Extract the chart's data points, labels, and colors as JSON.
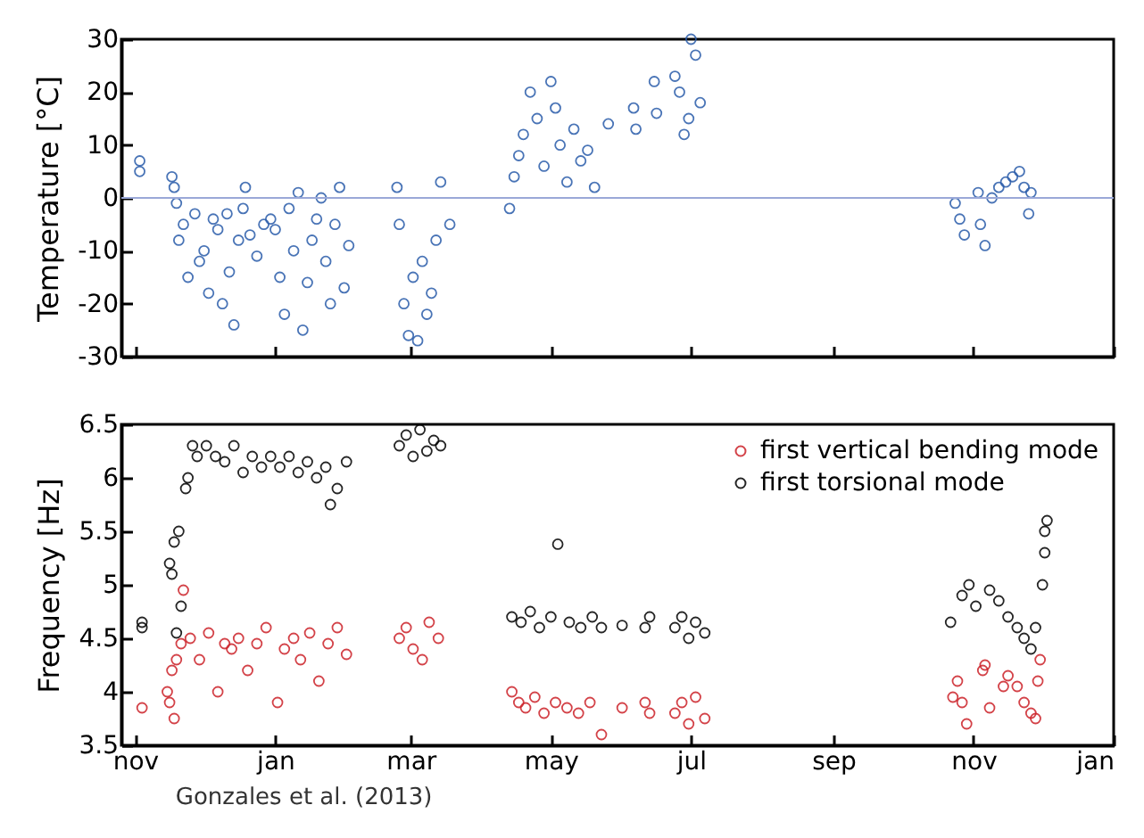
{
  "chart_data": [
    {
      "type": "scatter",
      "ylabel": "Temperature [°C]",
      "marker": "circle",
      "grid": false,
      "legend": false,
      "tick_labels": "y",
      "xlim": [
        "2012-10-26",
        "2014-01-01"
      ],
      "xticks": [
        {
          "value": "2012-11-01",
          "label": null
        },
        {
          "value": "2013-01-01",
          "label": null
        },
        {
          "value": "2013-03-01",
          "label": null
        },
        {
          "value": "2013-05-01",
          "label": null
        },
        {
          "value": "2013-07-01",
          "label": null
        },
        {
          "value": "2013-09-01",
          "label": null
        },
        {
          "value": "2013-11-01",
          "label": null
        },
        {
          "value": "2014-01-01",
          "label": null
        }
      ],
      "ylim": [
        -30,
        30
      ],
      "yticks": [
        -30,
        -20,
        -10,
        0,
        10,
        20,
        30
      ],
      "ref_lines": [
        {
          "axis": "y",
          "value": 0,
          "color": "#9aa8d8"
        }
      ],
      "series": [
        {
          "color": "#2a5caa",
          "x": [
            "2012-11-03",
            "2012-11-03",
            "2012-11-17",
            "2012-11-18",
            "2012-11-19",
            "2012-11-20",
            "2012-11-22",
            "2012-11-24",
            "2012-11-27",
            "2012-11-29",
            "2012-12-01",
            "2012-12-03",
            "2012-12-05",
            "2012-12-07",
            "2012-12-09",
            "2012-12-11",
            "2012-12-12",
            "2012-12-14",
            "2012-12-16",
            "2012-12-18",
            "2012-12-19",
            "2012-12-21",
            "2012-12-24",
            "2012-12-27",
            "2012-12-30",
            "2013-01-01",
            "2013-01-03",
            "2013-01-05",
            "2013-01-07",
            "2013-01-09",
            "2013-01-11",
            "2013-01-13",
            "2013-01-15",
            "2013-01-17",
            "2013-01-19",
            "2013-01-21",
            "2013-01-23",
            "2013-01-25",
            "2013-01-27",
            "2013-01-29",
            "2013-01-31",
            "2013-02-02",
            "2013-02-23",
            "2013-02-24",
            "2013-02-26",
            "2013-02-28",
            "2013-03-02",
            "2013-03-04",
            "2013-03-06",
            "2013-03-08",
            "2013-03-10",
            "2013-03-12",
            "2013-03-14",
            "2013-03-18",
            "2013-04-13",
            "2013-04-15",
            "2013-04-17",
            "2013-04-19",
            "2013-04-22",
            "2013-04-25",
            "2013-04-28",
            "2013-05-01",
            "2013-05-03",
            "2013-05-05",
            "2013-05-08",
            "2013-05-11",
            "2013-05-14",
            "2013-05-17",
            "2013-05-20",
            "2013-05-26",
            "2013-06-06",
            "2013-06-07",
            "2013-06-15",
            "2013-06-16",
            "2013-06-24",
            "2013-06-26",
            "2013-06-28",
            "2013-06-30",
            "2013-07-01",
            "2013-07-03",
            "2013-07-05",
            "2013-10-24",
            "2013-10-26",
            "2013-10-28",
            "2013-11-03",
            "2013-11-04",
            "2013-11-06",
            "2013-11-09",
            "2013-11-12",
            "2013-11-15",
            "2013-11-18",
            "2013-11-21",
            "2013-11-23",
            "2013-11-25",
            "2013-11-26"
          ],
          "values": [
            7,
            5,
            4,
            2,
            -1,
            -8,
            -5,
            -15,
            -3,
            -12,
            -10,
            -18,
            -4,
            -6,
            -20,
            -3,
            -14,
            -24,
            -8,
            -2,
            2,
            -7,
            -11,
            -5,
            -4,
            -6,
            -15,
            -22,
            -2,
            -10,
            1,
            -25,
            -16,
            -8,
            -4,
            0,
            -12,
            -20,
            -5,
            2,
            -17,
            -9,
            2,
            -5,
            -20,
            -26,
            -15,
            -27,
            -12,
            -22,
            -18,
            -8,
            3,
            -5,
            -2,
            4,
            8,
            12,
            20,
            15,
            6,
            22,
            17,
            10,
            3,
            13,
            7,
            9,
            2,
            14,
            17,
            13,
            22,
            16,
            23,
            20,
            12,
            15,
            30,
            27,
            18,
            -1,
            -4,
            -7,
            1,
            -5,
            -9,
            0,
            2,
            3,
            4,
            5,
            2,
            -3,
            1
          ]
        }
      ]
    },
    {
      "type": "scatter",
      "ylabel": "Frequency [Hz]",
      "marker": "circle",
      "grid": false,
      "legend": "top right",
      "xlim": [
        "2012-10-26",
        "2014-01-01"
      ],
      "xticks": [
        {
          "value": "2012-11-01",
          "label": "nov"
        },
        {
          "value": "2013-01-01",
          "label": "jan"
        },
        {
          "value": "2013-03-01",
          "label": "mar"
        },
        {
          "value": "2013-05-01",
          "label": "may"
        },
        {
          "value": "2013-07-01",
          "label": "jul"
        },
        {
          "value": "2013-09-01",
          "label": "sep"
        },
        {
          "value": "2013-11-01",
          "label": "nov"
        },
        {
          "value": "2014-01-01",
          "label": "jan"
        }
      ],
      "ylim": [
        3.5,
        6.5
      ],
      "yticks": [
        3.5,
        4,
        4.5,
        5,
        5.5,
        6,
        6.5
      ],
      "annotations": [
        "Gonzales et al. (2013)"
      ],
      "series": [
        {
          "name": "first vertical bending mode",
          "color": "#cc2229",
          "x": [
            "2012-11-04",
            "2012-11-15",
            "2012-11-16",
            "2012-11-17",
            "2012-11-18",
            "2012-11-19",
            "2012-11-21",
            "2012-11-22",
            "2012-11-25",
            "2012-11-29",
            "2012-12-03",
            "2012-12-07",
            "2012-12-10",
            "2012-12-13",
            "2012-12-16",
            "2012-12-20",
            "2012-12-24",
            "2012-12-28",
            "2013-01-02",
            "2013-01-05",
            "2013-01-09",
            "2013-01-12",
            "2013-01-16",
            "2013-01-20",
            "2013-01-24",
            "2013-01-28",
            "2013-02-01",
            "2013-02-24",
            "2013-02-27",
            "2013-03-02",
            "2013-03-06",
            "2013-03-09",
            "2013-03-13",
            "2013-04-14",
            "2013-04-17",
            "2013-04-20",
            "2013-04-24",
            "2013-04-28",
            "2013-05-03",
            "2013-05-08",
            "2013-05-13",
            "2013-05-18",
            "2013-05-23",
            "2013-06-01",
            "2013-06-11",
            "2013-06-13",
            "2013-06-24",
            "2013-06-27",
            "2013-06-30",
            "2013-07-03",
            "2013-07-07",
            "2013-10-23",
            "2013-10-25",
            "2013-10-27",
            "2013-10-29",
            "2013-11-05",
            "2013-11-06",
            "2013-11-08",
            "2013-11-14",
            "2013-11-16",
            "2013-11-20",
            "2013-11-23",
            "2013-11-26",
            "2013-11-28",
            "2013-11-29",
            "2013-11-30"
          ],
          "values": [
            3.85,
            4.0,
            3.9,
            4.2,
            3.75,
            4.3,
            4.45,
            4.95,
            4.5,
            4.3,
            4.55,
            4.0,
            4.45,
            4.4,
            4.5,
            4.2,
            4.45,
            4.6,
            3.9,
            4.4,
            4.5,
            4.3,
            4.55,
            4.1,
            4.45,
            4.6,
            4.35,
            4.5,
            4.6,
            4.4,
            4.3,
            4.65,
            4.5,
            4.0,
            3.9,
            3.85,
            3.95,
            3.8,
            3.9,
            3.85,
            3.8,
            3.9,
            3.6,
            3.85,
            3.9,
            3.8,
            3.8,
            3.9,
            3.7,
            3.95,
            3.75,
            3.95,
            4.1,
            3.9,
            3.7,
            4.2,
            4.25,
            3.85,
            4.05,
            4.15,
            4.05,
            3.9,
            3.8,
            3.75,
            4.1,
            4.3
          ]
        },
        {
          "name": "first torsional mode",
          "color": "#000000",
          "x": [
            "2012-11-04",
            "2012-11-04",
            "2012-11-16",
            "2012-11-17",
            "2012-11-18",
            "2012-11-19",
            "2012-11-20",
            "2012-11-21",
            "2012-11-23",
            "2012-11-24",
            "2012-11-26",
            "2012-11-28",
            "2012-12-02",
            "2012-12-06",
            "2012-12-10",
            "2012-12-14",
            "2012-12-18",
            "2012-12-22",
            "2012-12-26",
            "2012-12-30",
            "2013-01-03",
            "2013-01-07",
            "2013-01-11",
            "2013-01-15",
            "2013-01-19",
            "2013-01-23",
            "2013-01-25",
            "2013-01-28",
            "2013-02-01",
            "2013-02-24",
            "2013-02-27",
            "2013-03-02",
            "2013-03-05",
            "2013-03-08",
            "2013-03-11",
            "2013-03-14",
            "2013-04-14",
            "2013-04-18",
            "2013-04-22",
            "2013-04-26",
            "2013-05-01",
            "2013-05-04",
            "2013-05-09",
            "2013-05-14",
            "2013-05-19",
            "2013-05-23",
            "2013-06-01",
            "2013-06-11",
            "2013-06-13",
            "2013-06-24",
            "2013-06-27",
            "2013-06-30",
            "2013-07-03",
            "2013-07-07",
            "2013-10-22",
            "2013-10-27",
            "2013-10-30",
            "2013-11-02",
            "2013-11-08",
            "2013-11-12",
            "2013-11-16",
            "2013-11-20",
            "2013-11-23",
            "2013-11-26",
            "2013-11-28",
            "2013-12-01",
            "2013-12-02",
            "2013-12-02",
            "2013-12-03"
          ],
          "values": [
            4.65,
            4.6,
            5.2,
            5.1,
            5.4,
            4.55,
            5.5,
            4.8,
            5.9,
            6.0,
            6.3,
            6.2,
            6.3,
            6.2,
            6.15,
            6.3,
            6.05,
            6.2,
            6.1,
            6.2,
            6.1,
            6.2,
            6.05,
            6.15,
            6.0,
            6.1,
            5.75,
            5.9,
            6.15,
            6.3,
            6.4,
            6.2,
            6.45,
            6.25,
            6.35,
            6.3,
            4.7,
            4.65,
            4.75,
            4.6,
            4.7,
            5.38,
            4.65,
            4.6,
            4.7,
            4.6,
            4.62,
            4.6,
            4.7,
            4.6,
            4.7,
            4.5,
            4.65,
            4.55,
            4.65,
            4.9,
            5.0,
            4.8,
            4.95,
            4.85,
            4.7,
            4.6,
            4.5,
            4.4,
            4.6,
            5.0,
            5.3,
            5.5,
            5.6
          ]
        }
      ]
    }
  ]
}
